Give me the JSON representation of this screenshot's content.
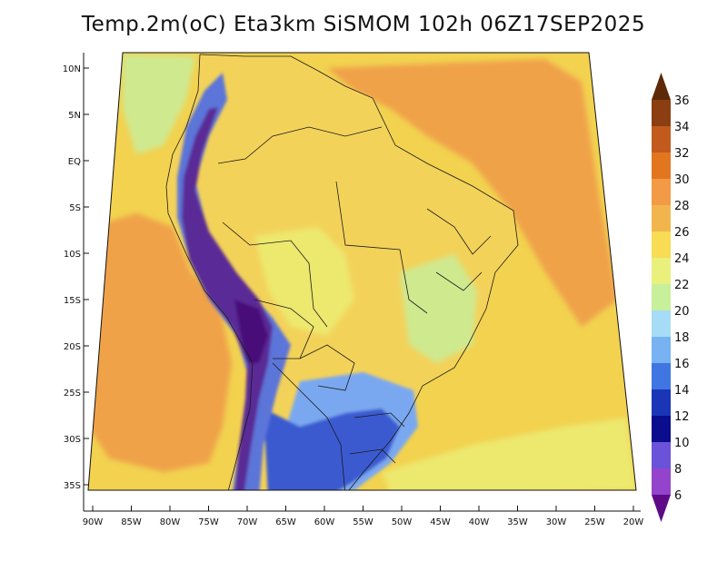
{
  "title": "Temp.2m(oC) Eta3km SiSMOM 102h 06Z17SEP2025",
  "map": {
    "latitude_labels": [
      "10N",
      "5N",
      "EQ",
      "5S",
      "10S",
      "15S",
      "20S",
      "25S",
      "30S",
      "35S"
    ],
    "longitude_labels": [
      "90W",
      "85W",
      "80W",
      "75W",
      "70W",
      "65W",
      "60W",
      "55W",
      "50W",
      "45W",
      "40W",
      "35W",
      "30W",
      "25W",
      "20W"
    ],
    "colors": {
      "ocean_warm": "#f2d24f",
      "ocean_orange": "#f0a24a",
      "land_base": "#f3d25a",
      "land_light": "#ede86e",
      "cool": "#cfe98f",
      "andes_mid": "#5b74d9",
      "andes_dark": "#5a2a96",
      "andes_deepest": "#4a0f7a",
      "south_blue": "#3a5ad0",
      "south_light": "#7aa8f0",
      "border_line": "#1a1a1a"
    }
  },
  "colorbar": {
    "labels": [
      "36",
      "34",
      "32",
      "30",
      "28",
      "26",
      "24",
      "22",
      "20",
      "18",
      "16",
      "14",
      "12",
      "10",
      "8",
      "6"
    ],
    "colors": [
      "#5c2a08",
      "#8a3e12",
      "#c15a1c",
      "#e2761f",
      "#f29a45",
      "#f2b54e",
      "#f7dc54",
      "#eaf07c",
      "#c8ef9a",
      "#a6dcf5",
      "#78b2f2",
      "#3f76e2",
      "#1a36b6",
      "#0a0d8e",
      "#6a52d9",
      "#9444cc",
      "#5e0a86"
    ]
  }
}
